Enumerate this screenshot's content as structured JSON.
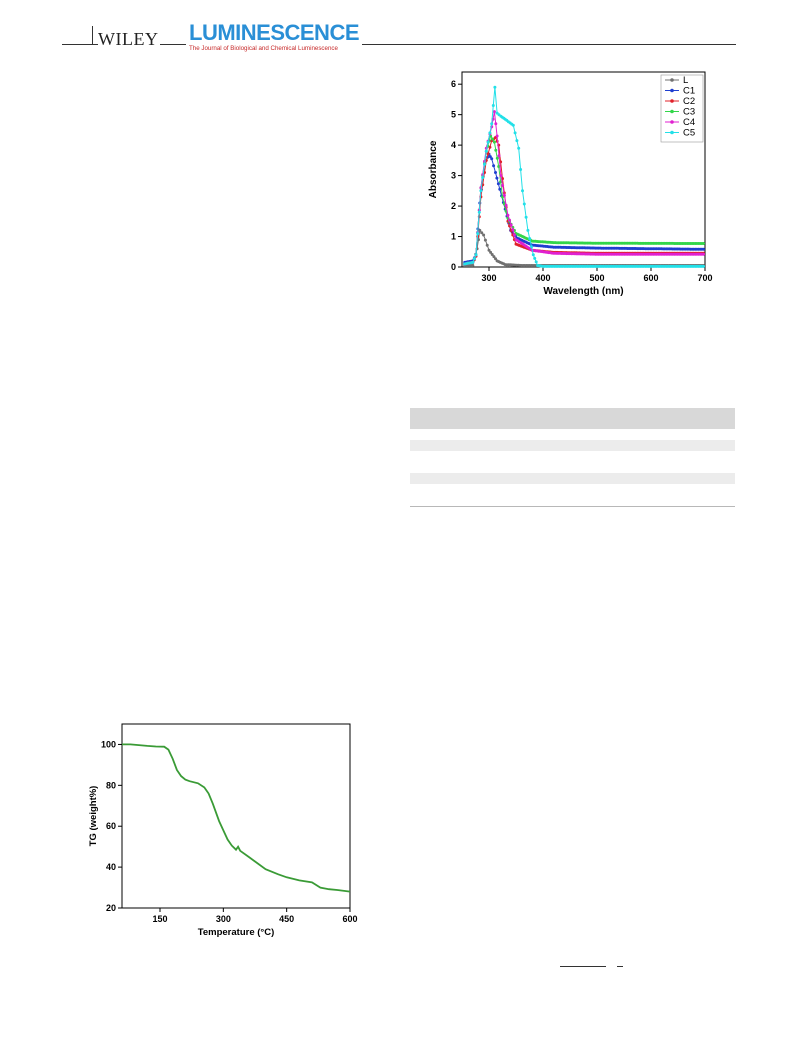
{
  "header": {
    "publisher": "WILEY",
    "journal_name": "LUMINESCENCE",
    "journal_subtitle": "The Journal of Biological and Chemical Luminescence",
    "colors": {
      "journal": "#2a8fd6",
      "subtitle": "#c62828"
    }
  },
  "chart_data": [
    {
      "type": "line",
      "title": "",
      "xlabel": "Wavelength (nm)",
      "ylabel": "Absorbance",
      "xlim": [
        250,
        700
      ],
      "ylim": [
        0,
        6.4
      ],
      "xticks": [
        300,
        400,
        500,
        600,
        700
      ],
      "yticks": [
        0,
        1,
        2,
        3,
        4,
        5,
        6
      ],
      "grid": false,
      "legend_position": "top-right",
      "series": [
        {
          "name": "L",
          "color": "#707070",
          "x": [
            255,
            270,
            278,
            283,
            290,
            300,
            315,
            330,
            360,
            400,
            700
          ],
          "y": [
            0.05,
            0.05,
            0.6,
            1.2,
            1.05,
            0.55,
            0.2,
            0.08,
            0.05,
            0.05,
            0.05
          ]
        },
        {
          "name": "C1",
          "color": "#1f3fd0",
          "x": [
            255,
            270,
            276,
            283,
            292,
            300,
            305,
            312,
            320,
            330,
            340,
            352,
            380,
            420,
            500,
            700
          ],
          "y": [
            0.15,
            0.2,
            0.4,
            2.1,
            3.4,
            3.7,
            3.55,
            3.1,
            2.55,
            1.9,
            1.2,
            0.95,
            0.72,
            0.65,
            0.62,
            0.58
          ]
        },
        {
          "name": "C2",
          "color": "#e0202a",
          "x": [
            255,
            270,
            276,
            285,
            295,
            305,
            312,
            318,
            325,
            335,
            350,
            380,
            420,
            500,
            700
          ],
          "y": [
            0.1,
            0.15,
            0.35,
            2.3,
            3.5,
            4.15,
            4.25,
            4.0,
            2.9,
            1.5,
            0.75,
            0.55,
            0.48,
            0.45,
            0.45
          ]
        },
        {
          "name": "C3",
          "color": "#33d64a",
          "x": [
            255,
            270,
            276,
            285,
            295,
            303,
            310,
            318,
            325,
            335,
            350,
            380,
            420,
            500,
            700
          ],
          "y": [
            0.1,
            0.15,
            0.4,
            2.6,
            3.8,
            4.3,
            4.1,
            3.3,
            2.3,
            1.6,
            1.1,
            0.85,
            0.8,
            0.78,
            0.77
          ]
        },
        {
          "name": "C4",
          "color": "#e020d0",
          "x": [
            255,
            270,
            276,
            285,
            295,
            305,
            310,
            315,
            322,
            335,
            350,
            380,
            420,
            500,
            700
          ],
          "y": [
            0.1,
            0.15,
            0.4,
            2.6,
            3.9,
            4.6,
            5.1,
            4.3,
            3.0,
            1.7,
            0.9,
            0.55,
            0.45,
            0.42,
            0.42
          ]
        },
        {
          "name": "C5",
          "color": "#22e0e8",
          "x": [
            255,
            270,
            276,
            285,
            295,
            305,
            311,
            315,
            322,
            330,
            345,
            355,
            362,
            372,
            382,
            390,
            400,
            500,
            700
          ],
          "y": [
            0.1,
            0.15,
            0.4,
            2.5,
            3.8,
            4.7,
            5.9,
            5.05,
            4.95,
            4.85,
            4.65,
            3.9,
            2.5,
            1.2,
            0.4,
            0.05,
            0.02,
            0.02,
            0.02
          ]
        }
      ]
    },
    {
      "type": "line",
      "title": "",
      "xlabel": "Temperature (°C)",
      "ylabel": "TG (weight%)",
      "xlim": [
        60,
        600
      ],
      "ylim": [
        20,
        110
      ],
      "xticks": [
        150,
        300,
        450,
        600
      ],
      "yticks": [
        20,
        40,
        60,
        80,
        100
      ],
      "grid": false,
      "series": [
        {
          "name": "",
          "color": "#3a9b36",
          "x": [
            60,
            80,
            100,
            120,
            140,
            160,
            170,
            180,
            190,
            200,
            210,
            220,
            240,
            255,
            265,
            275,
            290,
            300,
            310,
            320,
            330,
            335,
            340,
            360,
            380,
            400,
            430,
            450,
            480,
            510,
            530,
            550,
            570,
            600
          ],
          "y": [
            100,
            100,
            99.7,
            99.3,
            99.0,
            98.9,
            97.5,
            93.0,
            87.5,
            84.5,
            82.8,
            82.0,
            81.0,
            79.0,
            76.0,
            71.0,
            62.5,
            58.0,
            53.5,
            50.5,
            48.5,
            50.0,
            48.0,
            45.0,
            42.0,
            39.0,
            36.5,
            35.0,
            33.5,
            32.5,
            30.0,
            29.2,
            28.8,
            28.0
          ]
        }
      ]
    }
  ]
}
